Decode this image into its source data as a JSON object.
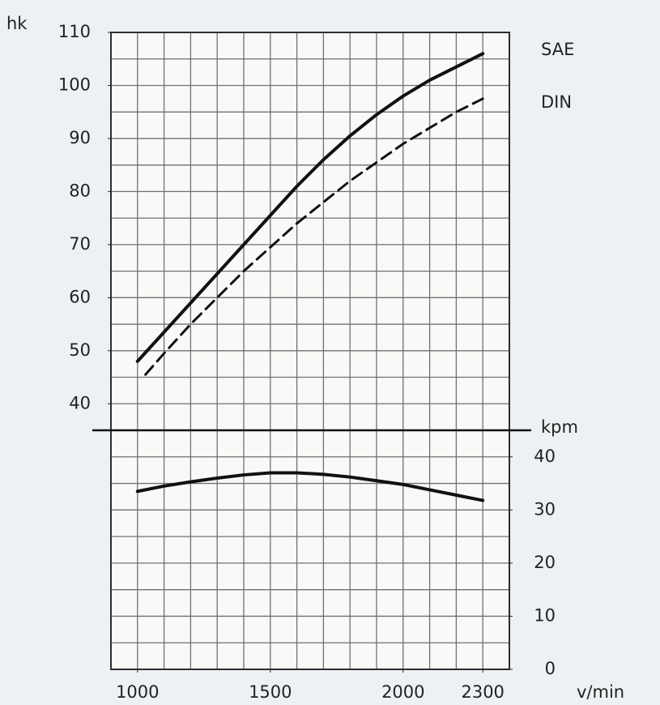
{
  "chart_data": [
    {
      "type": "line",
      "ylabel": "hk",
      "xlim": [
        900,
        2400
      ],
      "ylim": [
        35,
        110
      ],
      "yticks": [
        40,
        50,
        60,
        70,
        80,
        90,
        100,
        110
      ],
      "x_grid_step": 100,
      "y_grid_step": 5,
      "series": [
        {
          "name": "SAE",
          "color": "#111111",
          "dash": false,
          "x": [
            1000,
            1100,
            1200,
            1300,
            1400,
            1500,
            1600,
            1700,
            1800,
            1900,
            2000,
            2100,
            2200,
            2300
          ],
          "values": [
            48,
            53.5,
            59,
            64.5,
            70,
            75.5,
            81,
            86,
            90.5,
            94.5,
            98,
            101,
            103.5,
            106
          ]
        },
        {
          "name": "DIN",
          "color": "#111111",
          "dash": true,
          "x": [
            1030,
            1100,
            1200,
            1300,
            1400,
            1500,
            1600,
            1700,
            1800,
            1900,
            2000,
            2100,
            2200,
            2300
          ],
          "values": [
            45.5,
            49.5,
            55,
            60,
            65,
            69.5,
            74,
            78,
            82,
            85.5,
            89,
            92,
            95,
            97.5
          ]
        }
      ]
    },
    {
      "type": "line",
      "ylabel": "kpm",
      "xlabel": "v/min",
      "xlim": [
        900,
        2400
      ],
      "ylim": [
        0,
        45
      ],
      "yticks": [
        0,
        10,
        20,
        30,
        40
      ],
      "xticks": [
        1000,
        1500,
        2000,
        2300
      ],
      "x_grid_step": 100,
      "y_grid_step": 5,
      "series": [
        {
          "color": "#111111",
          "dash": false,
          "x": [
            1000,
            1100,
            1200,
            1300,
            1400,
            1500,
            1600,
            1700,
            1800,
            1900,
            2000,
            2100,
            2200,
            2300
          ],
          "values": [
            33.5,
            34.5,
            35.3,
            36,
            36.6,
            37,
            37,
            36.7,
            36.2,
            35.5,
            34.8,
            33.8,
            32.8,
            31.8
          ]
        }
      ]
    }
  ]
}
